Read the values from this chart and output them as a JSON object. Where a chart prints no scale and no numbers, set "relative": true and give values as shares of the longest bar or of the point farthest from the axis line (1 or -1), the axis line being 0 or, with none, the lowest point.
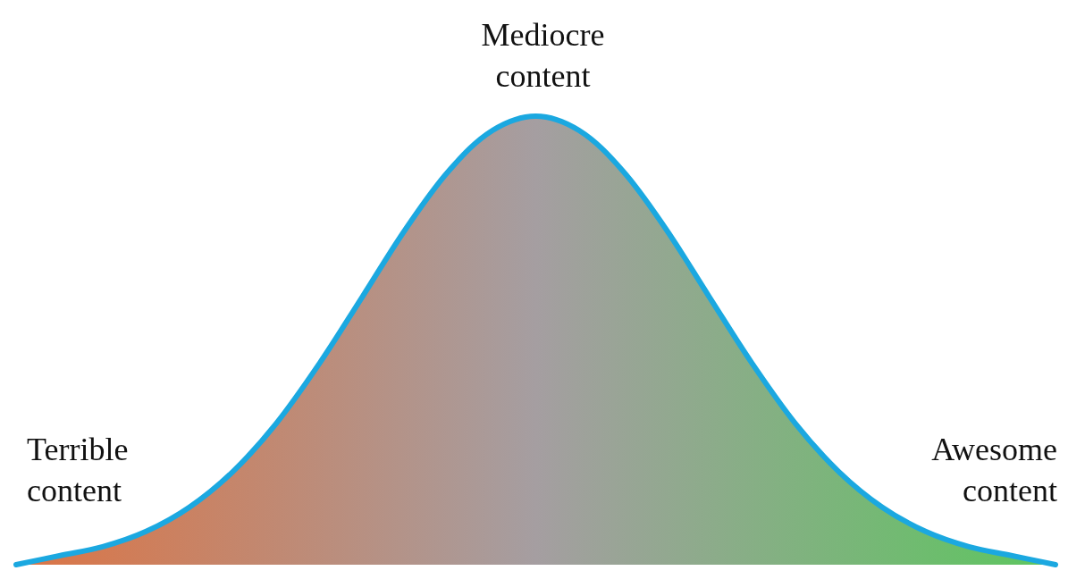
{
  "chart_data": {
    "type": "area",
    "relative": true,
    "categories": [
      null,
      null,
      null,
      null,
      null,
      null,
      null,
      null,
      null,
      null,
      null,
      null,
      null,
      null,
      null,
      null,
      null,
      null,
      null,
      null,
      null,
      null,
      null,
      null,
      null
    ],
    "series": [
      {
        "color": "#1ba8e0",
        "values": [
          0,
          0.02,
          0.04,
          0.074,
          0.128,
          0.207,
          0.314,
          0.448,
          0.598,
          0.749,
          0.879,
          0.968,
          1,
          0.968,
          0.879,
          0.749,
          0.598,
          0.448,
          0.314,
          0.207,
          0.128,
          0.074,
          0.04,
          0.02,
          0
        ]
      }
    ],
    "annotations": [
      "Mediocre\ncontent",
      "Terrible\ncontent",
      "Awesome\ncontent"
    ]
  }
}
